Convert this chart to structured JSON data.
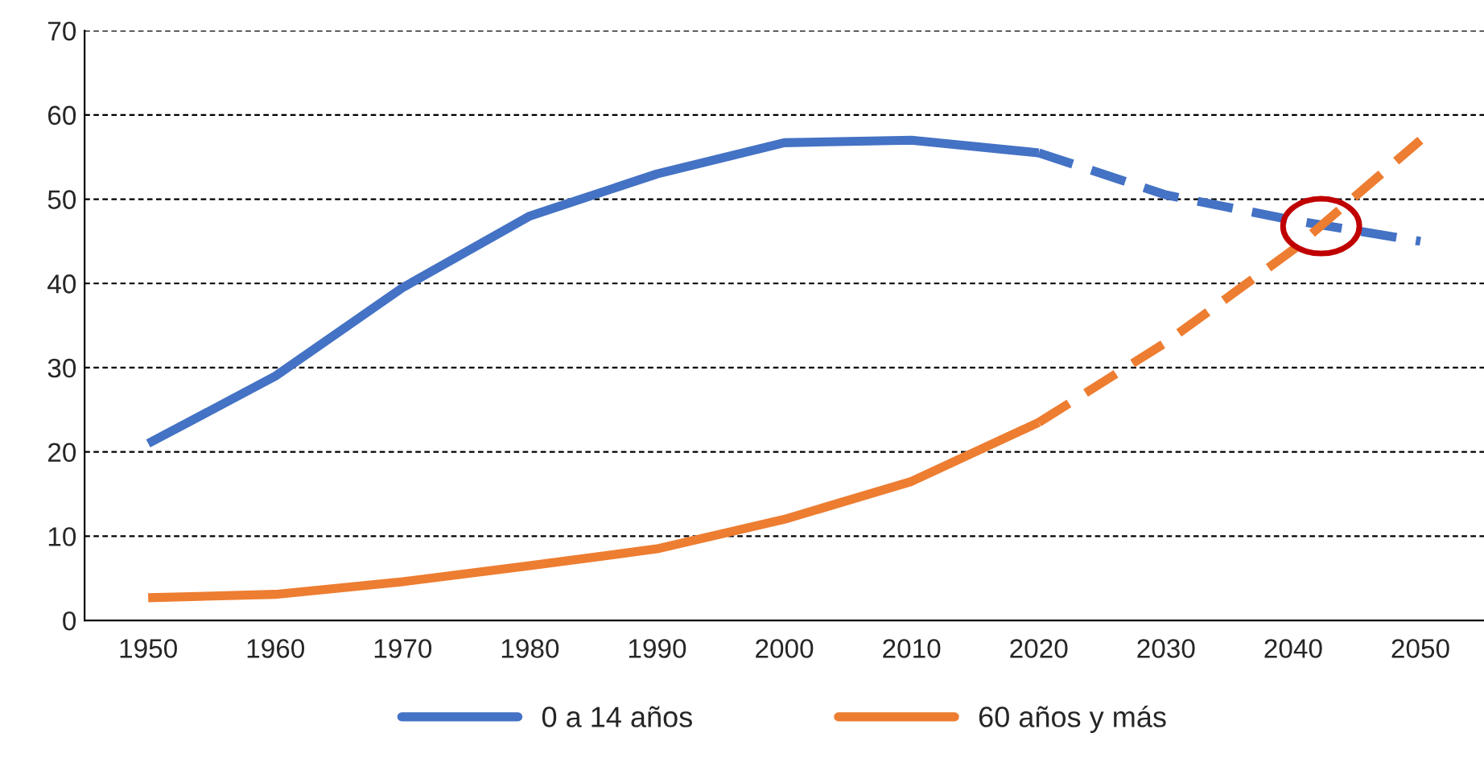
{
  "chart_data": {
    "type": "line",
    "categories": [
      "1950",
      "1960",
      "1970",
      "1980",
      "1990",
      "2000",
      "2010",
      "2020",
      "2030",
      "2040",
      "2050"
    ],
    "series": [
      {
        "name": "0 a 14 años",
        "color": "#4472c4",
        "line_style": "solid",
        "values": [
          21,
          29,
          39.5,
          48,
          53,
          56.7,
          57,
          55.5,
          null,
          null,
          null
        ]
      },
      {
        "color": "#4472c4",
        "line_style": "dashed",
        "values": [
          null,
          null,
          null,
          null,
          null,
          null,
          null,
          55.5,
          50.5,
          47.5,
          45
        ]
      },
      {
        "name": "60 años y más",
        "color": "#ed7d31",
        "line_style": "solid",
        "values": [
          2.7,
          3.1,
          4.6,
          6.5,
          8.5,
          12,
          16.5,
          23.5,
          null,
          null,
          null
        ]
      },
      {
        "color": "#ed7d31",
        "line_style": "dashed",
        "values": [
          null,
          null,
          null,
          null,
          null,
          null,
          null,
          23.5,
          33,
          44,
          57
        ]
      }
    ],
    "ylim": [
      0,
      70
    ],
    "yticks": [
      0,
      10,
      20,
      30,
      40,
      50,
      60,
      70
    ],
    "grid": "y",
    "legend": "bottom",
    "marker": "none"
  }
}
